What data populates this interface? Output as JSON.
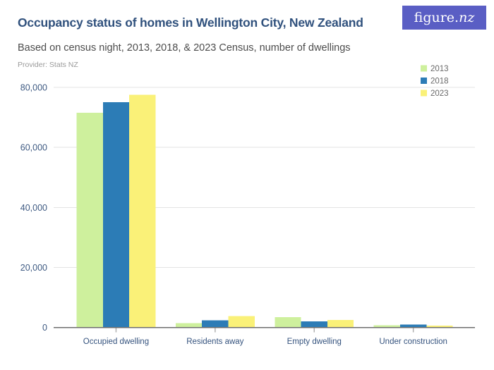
{
  "branding": {
    "logo_text_main": "figure.",
    "logo_text_accent": "nz",
    "logo_bg_color": "#5A5EC4"
  },
  "chart_data": {
    "type": "bar",
    "title": "Occupancy status of homes in Wellington City, New Zealand",
    "subtitle": "Based on census night, 2013, 2018, & 2023 Census, number of dwellings",
    "provider": "Provider: Stats NZ",
    "xlabel": "",
    "ylabel": "",
    "categories": [
      "Occupied dwelling",
      "Residents away",
      "Empty dwelling",
      "Under construction"
    ],
    "series": [
      {
        "name": "2013",
        "color": "#CEF09D",
        "values": [
          71500,
          1450,
          3400,
          650
        ]
      },
      {
        "name": "2018",
        "color": "#2C7CB6",
        "values": [
          75100,
          2400,
          2000,
          900
        ]
      },
      {
        "name": "2023",
        "color": "#FAF178",
        "values": [
          77500,
          3800,
          2500,
          600
        ]
      }
    ],
    "ylim": [
      0,
      80000
    ],
    "yticks": [
      0,
      20000,
      40000,
      60000,
      80000
    ],
    "ytick_labels": [
      "0",
      "20,000",
      "40,000",
      "60,000",
      "80,000"
    ],
    "grid": true,
    "legend_position": "top-right",
    "colors": {
      "title": "#30517D",
      "subtitle": "#4C4C4C",
      "provider": "#9A9A9A",
      "ytick_label": "#3E5A82",
      "category_label": "#35537E",
      "legend_label": "#696969",
      "gridline": "#E3E3E3",
      "axis_line": "#6F6F6F",
      "tick_mark": "#B0B0B0"
    }
  }
}
